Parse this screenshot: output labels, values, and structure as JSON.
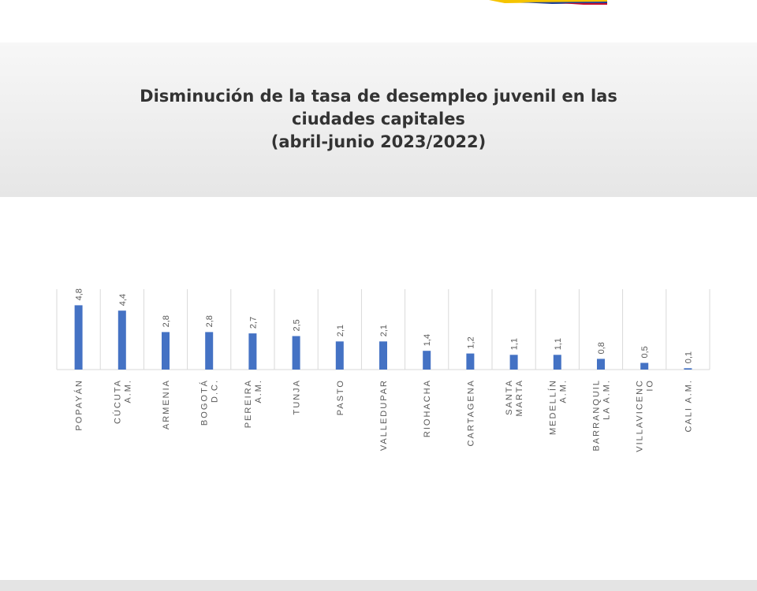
{
  "chart_data": {
    "type": "bar",
    "title_lines": [
      "Disminución de la tasa de desempleo juvenil en las",
      "ciudades capitales",
      "(abril-junio 2023/2022)"
    ],
    "categories": [
      [
        "POPAYÁN"
      ],
      [
        "CÚCUTA",
        "A.M."
      ],
      [
        "ARMENIA"
      ],
      [
        "BOGOTÁ",
        "D.C."
      ],
      [
        "PEREIRA",
        "A.M."
      ],
      [
        "TUNJA"
      ],
      [
        "PASTO"
      ],
      [
        "VALLEDUPAR"
      ],
      [
        "RIOHACHA"
      ],
      [
        "CARTAGENA"
      ],
      [
        "SANTA",
        "MARTA"
      ],
      [
        "MEDELLÍN",
        "A.M."
      ],
      [
        "BARRANQUIL",
        "LA A.M."
      ],
      [
        "VILLAVICENC",
        "IO"
      ],
      [
        "CALI A.M."
      ]
    ],
    "values": [
      4.8,
      4.4,
      2.8,
      2.8,
      2.7,
      2.5,
      2.1,
      2.1,
      1.4,
      1.2,
      1.1,
      1.1,
      0.8,
      0.5,
      0.1
    ],
    "data_labels": [
      "4,8",
      "4,4",
      "2,8",
      "2,8",
      "2,7",
      "2,5",
      "2,1",
      "2,1",
      "1,4",
      "1,2",
      "1,1",
      "1,1",
      "0,8",
      "0,5",
      "0,1"
    ],
    "ylim": [
      0,
      6
    ],
    "grid": "vertical",
    "legend": "none",
    "colors": {
      "bar": "#4472c4",
      "grid": "#d9d9d9",
      "text": "#595959",
      "title": "#333333"
    }
  }
}
